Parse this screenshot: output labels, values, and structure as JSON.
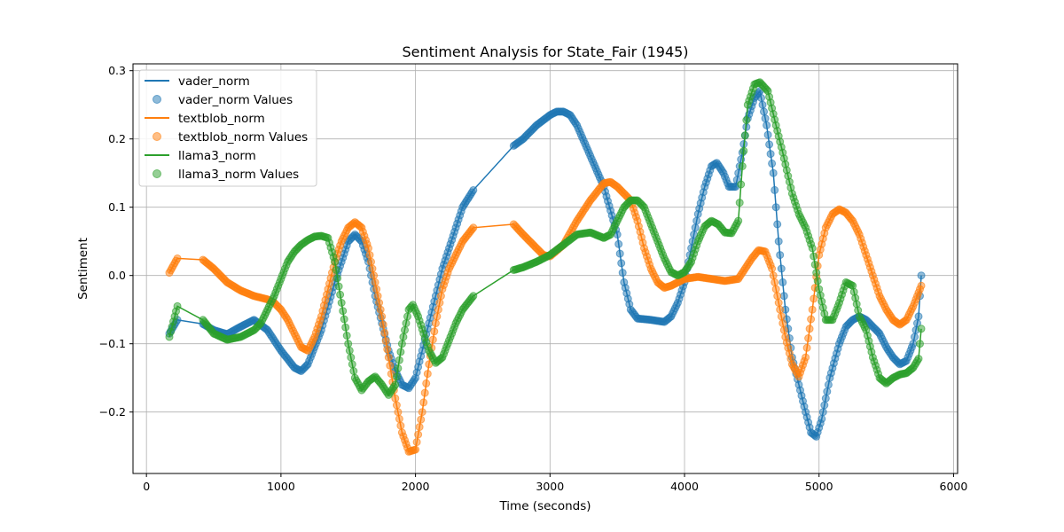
{
  "chart_data": {
    "type": "line",
    "title": "Sentiment Analysis for State_Fair (1945)",
    "xlabel": "Time (seconds)",
    "ylabel": "Sentiment",
    "xlim": [
      -100,
      6030
    ],
    "ylim": [
      -0.29,
      0.31
    ],
    "x_ticks": [
      0,
      1000,
      2000,
      3000,
      4000,
      5000,
      6000
    ],
    "y_ticks": [
      -0.2,
      -0.1,
      0.0,
      0.1,
      0.2,
      0.3
    ],
    "x_tick_labels": [
      "0",
      "1000",
      "2000",
      "3000",
      "4000",
      "5000",
      "6000"
    ],
    "y_tick_labels": [
      "−0.2",
      "−0.1",
      "0.0",
      "0.1",
      "0.2",
      "0.3"
    ],
    "grid": true,
    "legend_position": "top-left",
    "legend": [
      "vader_norm",
      "vader_norm Values",
      "textblob_norm",
      "textblob_norm Values",
      "llama3_norm",
      "llama3_norm Values"
    ],
    "series": [
      {
        "name": "vader_norm",
        "color": "#1f77b4",
        "points": [
          [
            170,
            -0.085
          ],
          [
            230,
            -0.065
          ],
          [
            420,
            -0.071
          ],
          [
            500,
            -0.08
          ],
          [
            600,
            -0.086
          ],
          [
            700,
            -0.075
          ],
          [
            800,
            -0.065
          ],
          [
            900,
            -0.08
          ],
          [
            1000,
            -0.11
          ],
          [
            1100,
            -0.135
          ],
          [
            1150,
            -0.14
          ],
          [
            1200,
            -0.13
          ],
          [
            1300,
            -0.08
          ],
          [
            1400,
            -0.01
          ],
          [
            1500,
            0.05
          ],
          [
            1550,
            0.06
          ],
          [
            1600,
            0.05
          ],
          [
            1650,
            0.02
          ],
          [
            1700,
            -0.03
          ],
          [
            1750,
            -0.07
          ],
          [
            1800,
            -0.11
          ],
          [
            1850,
            -0.14
          ],
          [
            1900,
            -0.16
          ],
          [
            1950,
            -0.165
          ],
          [
            2000,
            -0.15
          ],
          [
            2050,
            -0.11
          ],
          [
            2100,
            -0.07
          ],
          [
            2150,
            -0.03
          ],
          [
            2200,
            0.01
          ],
          [
            2250,
            0.04
          ],
          [
            2300,
            0.07
          ],
          [
            2350,
            0.1
          ],
          [
            2430,
            0.125
          ],
          [
            2730,
            0.19
          ],
          [
            2800,
            0.2
          ],
          [
            2900,
            0.22
          ],
          [
            3000,
            0.235
          ],
          [
            3050,
            0.24
          ],
          [
            3100,
            0.24
          ],
          [
            3150,
            0.235
          ],
          [
            3200,
            0.22
          ],
          [
            3300,
            0.175
          ],
          [
            3400,
            0.13
          ],
          [
            3500,
            0.06
          ],
          [
            3550,
            -0.01
          ],
          [
            3600,
            -0.05
          ],
          [
            3650,
            -0.063
          ],
          [
            3750,
            -0.065
          ],
          [
            3850,
            -0.068
          ],
          [
            3900,
            -0.06
          ],
          [
            3950,
            -0.04
          ],
          [
            4000,
            -0.01
          ],
          [
            4050,
            0.04
          ],
          [
            4100,
            0.09
          ],
          [
            4150,
            0.13
          ],
          [
            4200,
            0.16
          ],
          [
            4240,
            0.165
          ],
          [
            4290,
            0.15
          ],
          [
            4330,
            0.13
          ],
          [
            4380,
            0.13
          ],
          [
            4430,
            0.18
          ],
          [
            4470,
            0.23
          ],
          [
            4520,
            0.26
          ],
          [
            4560,
            0.27
          ],
          [
            4610,
            0.22
          ],
          [
            4660,
            0.15
          ],
          [
            4700,
            0.05
          ],
          [
            4750,
            -0.05
          ],
          [
            4800,
            -0.12
          ],
          [
            4850,
            -0.16
          ],
          [
            4900,
            -0.2
          ],
          [
            4940,
            -0.23
          ],
          [
            4980,
            -0.236
          ],
          [
            5020,
            -0.21
          ],
          [
            5080,
            -0.15
          ],
          [
            5150,
            -0.1
          ],
          [
            5200,
            -0.075
          ],
          [
            5250,
            -0.065
          ],
          [
            5300,
            -0.06
          ],
          [
            5350,
            -0.065
          ],
          [
            5400,
            -0.075
          ],
          [
            5450,
            -0.085
          ],
          [
            5500,
            -0.105
          ],
          [
            5550,
            -0.12
          ],
          [
            5600,
            -0.13
          ],
          [
            5650,
            -0.125
          ],
          [
            5700,
            -0.1
          ],
          [
            5740,
            -0.06
          ],
          [
            5760,
            0.0
          ]
        ]
      },
      {
        "name": "textblob_norm",
        "color": "#ff7f0e",
        "points": [
          [
            170,
            0.004
          ],
          [
            230,
            0.025
          ],
          [
            420,
            0.023
          ],
          [
            500,
            0.01
          ],
          [
            600,
            -0.01
          ],
          [
            700,
            -0.022
          ],
          [
            800,
            -0.03
          ],
          [
            900,
            -0.035
          ],
          [
            950,
            -0.04
          ],
          [
            1000,
            -0.05
          ],
          [
            1050,
            -0.065
          ],
          [
            1100,
            -0.085
          ],
          [
            1150,
            -0.105
          ],
          [
            1200,
            -0.11
          ],
          [
            1250,
            -0.09
          ],
          [
            1300,
            -0.06
          ],
          [
            1350,
            -0.02
          ],
          [
            1400,
            0.02
          ],
          [
            1450,
            0.05
          ],
          [
            1500,
            0.07
          ],
          [
            1550,
            0.078
          ],
          [
            1600,
            0.07
          ],
          [
            1650,
            0.04
          ],
          [
            1700,
            -0.01
          ],
          [
            1750,
            -0.06
          ],
          [
            1800,
            -0.12
          ],
          [
            1850,
            -0.18
          ],
          [
            1900,
            -0.23
          ],
          [
            1950,
            -0.258
          ],
          [
            2000,
            -0.255
          ],
          [
            2050,
            -0.2
          ],
          [
            2100,
            -0.13
          ],
          [
            2150,
            -0.07
          ],
          [
            2200,
            -0.02
          ],
          [
            2250,
            0.01
          ],
          [
            2300,
            0.03
          ],
          [
            2350,
            0.05
          ],
          [
            2430,
            0.07
          ],
          [
            2730,
            0.075
          ],
          [
            2800,
            0.06
          ],
          [
            2900,
            0.04
          ],
          [
            2950,
            0.03
          ],
          [
            3000,
            0.028
          ],
          [
            3100,
            0.045
          ],
          [
            3200,
            0.08
          ],
          [
            3300,
            0.11
          ],
          [
            3400,
            0.135
          ],
          [
            3450,
            0.137
          ],
          [
            3500,
            0.13
          ],
          [
            3600,
            0.11
          ],
          [
            3650,
            0.08
          ],
          [
            3700,
            0.04
          ],
          [
            3750,
            0.01
          ],
          [
            3800,
            -0.01
          ],
          [
            3850,
            -0.018
          ],
          [
            3900,
            -0.015
          ],
          [
            4000,
            -0.005
          ],
          [
            4100,
            -0.002
          ],
          [
            4200,
            -0.005
          ],
          [
            4300,
            -0.008
          ],
          [
            4400,
            -0.005
          ],
          [
            4450,
            0.01
          ],
          [
            4500,
            0.025
          ],
          [
            4550,
            0.037
          ],
          [
            4600,
            0.035
          ],
          [
            4650,
            0.01
          ],
          [
            4700,
            -0.04
          ],
          [
            4750,
            -0.09
          ],
          [
            4800,
            -0.13
          ],
          [
            4850,
            -0.148
          ],
          [
            4900,
            -0.12
          ],
          [
            4950,
            -0.05
          ],
          [
            5000,
            0.03
          ],
          [
            5050,
            0.07
          ],
          [
            5100,
            0.09
          ],
          [
            5150,
            0.097
          ],
          [
            5200,
            0.092
          ],
          [
            5250,
            0.08
          ],
          [
            5300,
            0.06
          ],
          [
            5350,
            0.03
          ],
          [
            5400,
            0.0
          ],
          [
            5450,
            -0.03
          ],
          [
            5500,
            -0.05
          ],
          [
            5550,
            -0.065
          ],
          [
            5600,
            -0.072
          ],
          [
            5650,
            -0.065
          ],
          [
            5700,
            -0.045
          ],
          [
            5760,
            -0.015
          ]
        ]
      },
      {
        "name": "llama3_norm",
        "color": "#2ca02c",
        "points": [
          [
            170,
            -0.09
          ],
          [
            230,
            -0.045
          ],
          [
            420,
            -0.065
          ],
          [
            500,
            -0.085
          ],
          [
            600,
            -0.094
          ],
          [
            700,
            -0.09
          ],
          [
            800,
            -0.08
          ],
          [
            850,
            -0.07
          ],
          [
            900,
            -0.05
          ],
          [
            950,
            -0.03
          ],
          [
            1000,
            -0.005
          ],
          [
            1050,
            0.02
          ],
          [
            1100,
            0.035
          ],
          [
            1150,
            0.045
          ],
          [
            1200,
            0.052
          ],
          [
            1250,
            0.057
          ],
          [
            1300,
            0.058
          ],
          [
            1350,
            0.055
          ],
          [
            1400,
            0.02
          ],
          [
            1450,
            -0.04
          ],
          [
            1500,
            -0.1
          ],
          [
            1550,
            -0.15
          ],
          [
            1600,
            -0.168
          ],
          [
            1650,
            -0.155
          ],
          [
            1700,
            -0.148
          ],
          [
            1750,
            -0.16
          ],
          [
            1800,
            -0.175
          ],
          [
            1850,
            -0.16
          ],
          [
            1900,
            -0.1
          ],
          [
            1950,
            -0.05
          ],
          [
            1980,
            -0.043
          ],
          [
            2020,
            -0.06
          ],
          [
            2100,
            -0.11
          ],
          [
            2150,
            -0.128
          ],
          [
            2200,
            -0.12
          ],
          [
            2250,
            -0.095
          ],
          [
            2300,
            -0.07
          ],
          [
            2350,
            -0.05
          ],
          [
            2430,
            -0.03
          ],
          [
            2730,
            0.008
          ],
          [
            2800,
            0.012
          ],
          [
            2900,
            0.02
          ],
          [
            3000,
            0.03
          ],
          [
            3100,
            0.045
          ],
          [
            3200,
            0.06
          ],
          [
            3300,
            0.063
          ],
          [
            3400,
            0.055
          ],
          [
            3450,
            0.06
          ],
          [
            3500,
            0.08
          ],
          [
            3550,
            0.1
          ],
          [
            3600,
            0.11
          ],
          [
            3650,
            0.11
          ],
          [
            3700,
            0.1
          ],
          [
            3750,
            0.075
          ],
          [
            3800,
            0.05
          ],
          [
            3850,
            0.025
          ],
          [
            3900,
            0.005
          ],
          [
            3950,
            0.0
          ],
          [
            4000,
            0.005
          ],
          [
            4050,
            0.02
          ],
          [
            4100,
            0.05
          ],
          [
            4150,
            0.072
          ],
          [
            4200,
            0.08
          ],
          [
            4250,
            0.075
          ],
          [
            4300,
            0.063
          ],
          [
            4350,
            0.062
          ],
          [
            4400,
            0.08
          ],
          [
            4430,
            0.16
          ],
          [
            4470,
            0.25
          ],
          [
            4520,
            0.28
          ],
          [
            4560,
            0.283
          ],
          [
            4620,
            0.27
          ],
          [
            4680,
            0.22
          ],
          [
            4730,
            0.18
          ],
          [
            4800,
            0.12
          ],
          [
            4850,
            0.09
          ],
          [
            4900,
            0.07
          ],
          [
            4950,
            0.04
          ],
          [
            5000,
            -0.02
          ],
          [
            5050,
            -0.065
          ],
          [
            5100,
            -0.065
          ],
          [
            5150,
            -0.04
          ],
          [
            5200,
            -0.01
          ],
          [
            5250,
            -0.015
          ],
          [
            5300,
            -0.06
          ],
          [
            5350,
            -0.08
          ],
          [
            5400,
            -0.12
          ],
          [
            5450,
            -0.15
          ],
          [
            5500,
            -0.158
          ],
          [
            5550,
            -0.15
          ],
          [
            5600,
            -0.145
          ],
          [
            5650,
            -0.143
          ],
          [
            5700,
            -0.135
          ],
          [
            5740,
            -0.122
          ],
          [
            5760,
            -0.078
          ]
        ]
      }
    ]
  }
}
